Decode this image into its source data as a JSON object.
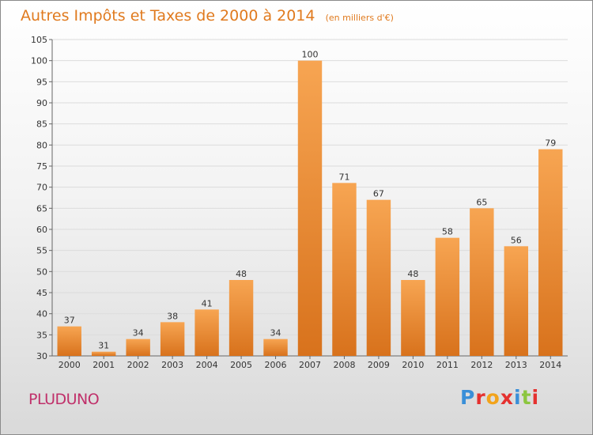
{
  "header": {
    "title": "Autres Impôts et Taxes de 2000 à 2014",
    "subtitle": "(en milliers d'€)"
  },
  "footer": {
    "place": "PLUDUNO",
    "logo_text": "Proxiti",
    "logo_colors": [
      "#3a8fd8",
      "#e5312f",
      "#f2a31b",
      "#e5312f",
      "#3a8fd8",
      "#8cc63f",
      "#e5312f"
    ]
  },
  "colors": {
    "bar_light": "#f7a552",
    "bar_dark": "#d8721c",
    "title": "#e07a1e",
    "place": "#c0306a",
    "gridline": "#dcdcdc"
  },
  "chart_data": {
    "type": "bar",
    "title": "Autres Impôts et Taxes de 2000 à 2014",
    "subtitle": "(en milliers d'€)",
    "xlabel": "",
    "ylabel": "",
    "categories": [
      "2000",
      "2001",
      "2002",
      "2003",
      "2004",
      "2005",
      "2006",
      "2007",
      "2008",
      "2009",
      "2010",
      "2011",
      "2012",
      "2013",
      "2014"
    ],
    "values": [
      37,
      31,
      34,
      38,
      41,
      48,
      34,
      100,
      71,
      67,
      48,
      58,
      65,
      56,
      79
    ],
    "ylim": [
      30,
      105
    ],
    "yticks": [
      30,
      35,
      40,
      45,
      50,
      55,
      60,
      65,
      70,
      75,
      80,
      85,
      90,
      95,
      100,
      105
    ],
    "grid": true,
    "data_labels": true
  }
}
